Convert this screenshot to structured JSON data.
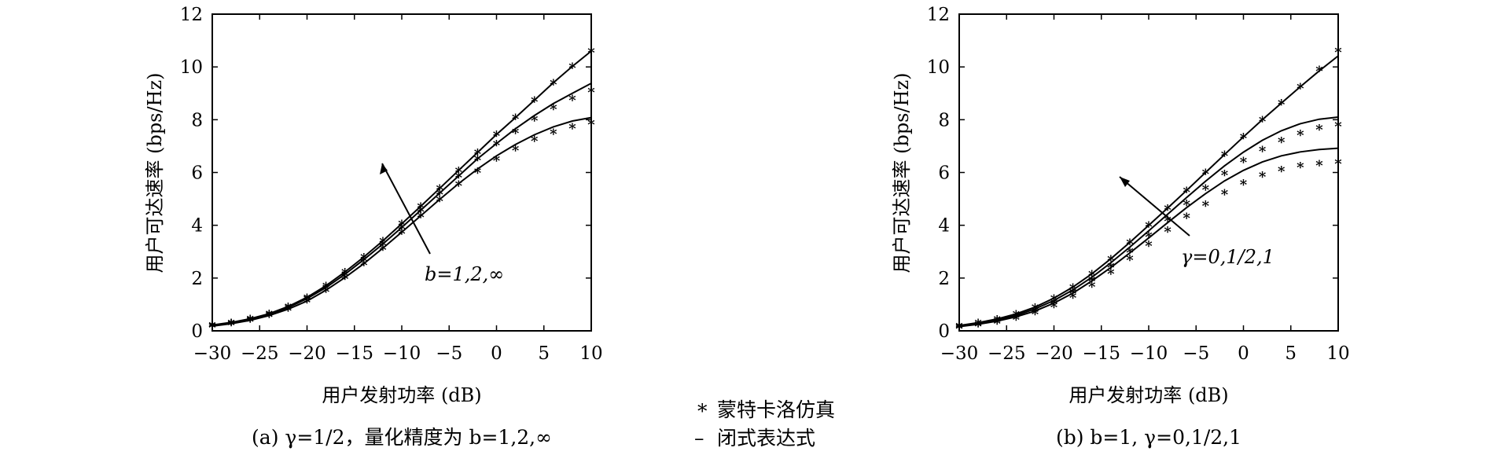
{
  "chart_data": [
    {
      "type": "line",
      "caption": "(a) γ=1/2，量化精度为  b=1,2,∞",
      "xlabel": "用户发射功率 (dB)",
      "ylabel": "用户可达速率 (bps/Hz)",
      "xlim": [
        -30,
        10
      ],
      "ylim": [
        0,
        12
      ],
      "xticks": [
        "−30",
        "−25",
        "−20",
        "−15",
        "−10",
        "−5",
        "0",
        "5",
        "10"
      ],
      "yticks": [
        "0",
        "2",
        "4",
        "6",
        "8",
        "10",
        "12"
      ],
      "annotation": "b=1,2,∞",
      "curves_x": [
        -30,
        -28,
        -26,
        -24,
        -22,
        -20,
        -18,
        -16,
        -14,
        -12,
        -10,
        -8,
        -6,
        -4,
        -2,
        0,
        2,
        4,
        6,
        8,
        10
      ],
      "curves": [
        [
          0.22,
          0.32,
          0.46,
          0.65,
          0.92,
          1.27,
          1.71,
          2.23,
          2.8,
          3.41,
          4.06,
          4.72,
          5.4,
          6.08,
          6.76,
          7.44,
          8.08,
          8.74,
          9.4,
          10.02,
          10.6
        ],
        [
          0.2,
          0.3,
          0.43,
          0.62,
          0.88,
          1.22,
          1.64,
          2.14,
          2.7,
          3.29,
          3.92,
          4.57,
          5.22,
          5.87,
          6.52,
          7.1,
          7.66,
          8.16,
          8.61,
          9.0,
          9.38
        ],
        [
          0.18,
          0.27,
          0.4,
          0.58,
          0.82,
          1.13,
          1.54,
          2.02,
          2.55,
          3.13,
          3.74,
          4.36,
          4.98,
          5.58,
          6.13,
          6.63,
          7.06,
          7.43,
          7.73,
          7.95,
          8.08
        ]
      ],
      "markers_x": [
        -30,
        -28,
        -26,
        -24,
        -22,
        -20,
        -18,
        -16,
        -14,
        -12,
        -10,
        -8,
        -6,
        -4,
        -2,
        0,
        2,
        4,
        6,
        8,
        10
      ],
      "markers": [
        [
          0.22,
          0.32,
          0.46,
          0.65,
          0.92,
          1.27,
          1.71,
          2.23,
          2.8,
          3.41,
          4.06,
          4.72,
          5.4,
          6.08,
          6.76,
          7.44,
          8.08,
          8.74,
          9.4,
          10.02,
          10.6
        ],
        [
          0.2,
          0.3,
          0.43,
          0.62,
          0.88,
          1.22,
          1.64,
          2.14,
          2.7,
          3.29,
          3.92,
          4.57,
          5.22,
          5.87,
          6.52,
          7.08,
          7.55,
          8.02,
          8.45,
          8.8,
          9.1
        ],
        [
          0.18,
          0.27,
          0.4,
          0.58,
          0.82,
          1.13,
          1.54,
          2.02,
          2.55,
          3.13,
          3.74,
          4.36,
          4.98,
          5.55,
          6.05,
          6.5,
          6.9,
          7.25,
          7.52,
          7.72,
          7.88
        ]
      ]
    },
    {
      "type": "line",
      "caption": "(b) b=1, γ=0,1/2,1",
      "xlabel": "用户发射功率 (dB)",
      "ylabel": "用户可达速率 (bps/Hz)",
      "xlim": [
        -30,
        10
      ],
      "ylim": [
        0,
        12
      ],
      "xticks": [
        "−30",
        "−25",
        "−20",
        "−15",
        "−10",
        "−5",
        "0",
        "5",
        "10"
      ],
      "yticks": [
        "0",
        "2",
        "4",
        "6",
        "8",
        "10",
        "12"
      ],
      "annotation": "γ=0,1/2,1",
      "curves_x": [
        -30,
        -28,
        -26,
        -24,
        -22,
        -20,
        -18,
        -16,
        -14,
        -12,
        -10,
        -8,
        -6,
        -4,
        -2,
        0,
        2,
        4,
        6,
        8,
        10
      ],
      "curves": [
        [
          0.2,
          0.31,
          0.45,
          0.64,
          0.9,
          1.24,
          1.66,
          2.16,
          2.73,
          3.35,
          4.0,
          4.65,
          5.32,
          6.0,
          6.68,
          7.35,
          8.0,
          8.63,
          9.25,
          9.85,
          10.42
        ],
        [
          0.18,
          0.28,
          0.41,
          0.58,
          0.83,
          1.15,
          1.55,
          2.03,
          2.58,
          3.17,
          3.79,
          4.42,
          5.05,
          5.67,
          6.25,
          6.77,
          7.22,
          7.58,
          7.85,
          8.02,
          8.1
        ],
        [
          0.16,
          0.25,
          0.37,
          0.53,
          0.75,
          1.05,
          1.43,
          1.89,
          2.4,
          2.95,
          3.52,
          4.1,
          4.67,
          5.2,
          5.68,
          6.08,
          6.4,
          6.63,
          6.78,
          6.87,
          6.92
        ]
      ],
      "markers_x": [
        -30,
        -28,
        -26,
        -24,
        -22,
        -20,
        -18,
        -16,
        -14,
        -12,
        -10,
        -8,
        -6,
        -4,
        -2,
        0,
        2,
        4,
        6,
        8,
        10
      ],
      "markers": [
        [
          0.2,
          0.31,
          0.45,
          0.64,
          0.9,
          1.24,
          1.66,
          2.16,
          2.73,
          3.35,
          4.0,
          4.65,
          5.32,
          6.0,
          6.68,
          7.35,
          8.0,
          8.63,
          9.25,
          9.9,
          10.62
        ],
        [
          0.17,
          0.26,
          0.38,
          0.55,
          0.78,
          1.08,
          1.47,
          1.93,
          2.45,
          3.02,
          3.62,
          4.22,
          4.82,
          5.4,
          5.95,
          6.45,
          6.87,
          7.2,
          7.48,
          7.68,
          7.8
        ],
        [
          0.14,
          0.22,
          0.33,
          0.48,
          0.68,
          0.96,
          1.31,
          1.73,
          2.22,
          2.74,
          3.27,
          3.81,
          4.33,
          4.8,
          5.23,
          5.6,
          5.9,
          6.1,
          6.25,
          6.33,
          6.38
        ]
      ]
    }
  ],
  "legend": {
    "sim_marker": "*",
    "sim_label": "蒙特卡洛仿真",
    "closed_marker": "–",
    "closed_label": "闭式表达式"
  }
}
